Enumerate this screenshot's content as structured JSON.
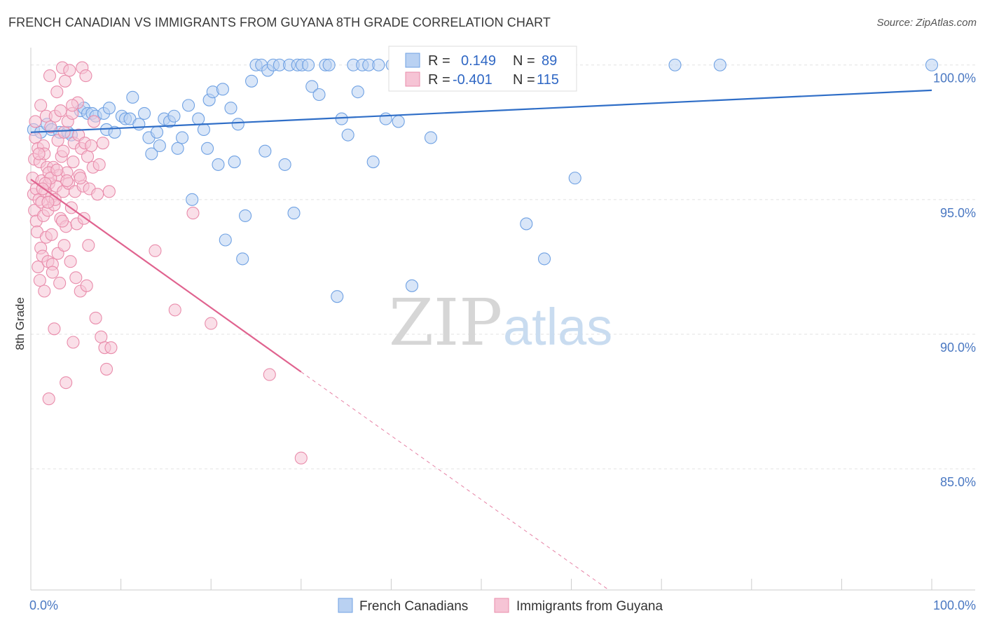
{
  "title": "FRENCH CANADIAN VS IMMIGRANTS FROM GUYANA 8TH GRADE CORRELATION CHART",
  "source": "Source: ZipAtlas.com",
  "watermark": {
    "zip": "ZIP",
    "atlas": "atlas"
  },
  "chart_data": {
    "type": "scatter",
    "xlabel": "",
    "ylabel": "8th Grade",
    "xlim": [
      0,
      100
    ],
    "ylim": [
      80.5,
      100.8
    ],
    "x_tick_labels": [
      "0.0%",
      "100.0%"
    ],
    "y_ticks": [
      {
        "value": 100,
        "label": "100.0%"
      },
      {
        "value": 95,
        "label": "95.0%"
      },
      {
        "value": 90,
        "label": "90.0%"
      },
      {
        "value": 85,
        "label": "85.0%"
      }
    ],
    "grid": true,
    "legend": {
      "placement": "top-center",
      "rows": [
        {
          "r_label": "R =",
          "r_value": "0.149",
          "n_label": "N =",
          "n_value": "89"
        },
        {
          "r_label": "R =",
          "r_value": "-0.401",
          "n_label": "N =",
          "n_value": "115"
        }
      ]
    },
    "series": [
      {
        "name": "French Canadians",
        "color": "#6fa1e3",
        "fill": "#b9d1f2",
        "trend": {
          "x0": 0,
          "y0": 97.5,
          "x1": 100,
          "y1": 99.06,
          "dashed_to": null
        },
        "points": [
          [
            0.3,
            97.6
          ],
          [
            1.1,
            97.5
          ],
          [
            1.8,
            97.8
          ],
          [
            2.3,
            97.6
          ],
          [
            3.2,
            97.5
          ],
          [
            4.1,
            97.5
          ],
          [
            4.5,
            97.4
          ],
          [
            5.5,
            98.3
          ],
          [
            5.9,
            98.4
          ],
          [
            6.3,
            98.2
          ],
          [
            6.8,
            98.2
          ],
          [
            7.2,
            98.1
          ],
          [
            8.1,
            98.2
          ],
          [
            8.4,
            97.6
          ],
          [
            8.7,
            98.4
          ],
          [
            9.3,
            97.5
          ],
          [
            10.1,
            98.1
          ],
          [
            10.5,
            98.0
          ],
          [
            11.0,
            98.0
          ],
          [
            11.3,
            98.8
          ],
          [
            12.0,
            97.8
          ],
          [
            12.6,
            98.2
          ],
          [
            13.1,
            97.3
          ],
          [
            13.4,
            96.7
          ],
          [
            14.0,
            97.5
          ],
          [
            14.3,
            97.0
          ],
          [
            14.8,
            98.0
          ],
          [
            15.4,
            97.9
          ],
          [
            15.9,
            98.1
          ],
          [
            16.3,
            96.9
          ],
          [
            16.8,
            97.3
          ],
          [
            17.5,
            98.5
          ],
          [
            17.9,
            95.0
          ],
          [
            18.6,
            98.0
          ],
          [
            19.2,
            97.6
          ],
          [
            19.6,
            96.9
          ],
          [
            19.8,
            98.7
          ],
          [
            20.2,
            99.0
          ],
          [
            20.8,
            96.3
          ],
          [
            21.3,
            99.1
          ],
          [
            21.6,
            93.5
          ],
          [
            22.2,
            98.4
          ],
          [
            22.6,
            96.4
          ],
          [
            23.0,
            97.8
          ],
          [
            23.5,
            92.8
          ],
          [
            23.8,
            94.4
          ],
          [
            24.5,
            99.4
          ],
          [
            25.0,
            100.0
          ],
          [
            25.6,
            100.0
          ],
          [
            26.0,
            96.8
          ],
          [
            26.3,
            99.8
          ],
          [
            26.9,
            100.0
          ],
          [
            27.6,
            100.0
          ],
          [
            28.2,
            96.3
          ],
          [
            28.7,
            100.0
          ],
          [
            29.2,
            94.5
          ],
          [
            29.6,
            100.0
          ],
          [
            30.1,
            100.0
          ],
          [
            30.8,
            100.0
          ],
          [
            31.2,
            99.2
          ],
          [
            32.0,
            98.9
          ],
          [
            32.7,
            100.0
          ],
          [
            33.1,
            100.0
          ],
          [
            34.0,
            91.4
          ],
          [
            34.5,
            98.0
          ],
          [
            35.2,
            97.4
          ],
          [
            35.8,
            100.0
          ],
          [
            36.3,
            99.0
          ],
          [
            36.8,
            100.0
          ],
          [
            37.5,
            100.0
          ],
          [
            38.0,
            96.4
          ],
          [
            38.6,
            100.0
          ],
          [
            39.4,
            98.0
          ],
          [
            40.1,
            100.0
          ],
          [
            40.8,
            97.9
          ],
          [
            41.5,
            100.0
          ],
          [
            42.3,
            91.8
          ],
          [
            43.0,
            100.0
          ],
          [
            43.6,
            100.0
          ],
          [
            44.4,
            97.3
          ],
          [
            45.1,
            100.0
          ],
          [
            45.8,
            100.0
          ],
          [
            48.0,
            100.0
          ],
          [
            55.0,
            94.1
          ],
          [
            57.0,
            92.8
          ],
          [
            60.4,
            95.8
          ],
          [
            71.5,
            100.0
          ],
          [
            76.5,
            100.0
          ],
          [
            100.0,
            100.0
          ]
        ]
      },
      {
        "name": "Immigrants from Guyana",
        "color": "#e98cab",
        "fill": "#f6c4d5",
        "trend": {
          "x0": 0,
          "y0": 95.75,
          "x1": 30.0,
          "y1": 88.6,
          "dashed_to": {
            "x": 100,
            "y": 72.0
          }
        },
        "points": [
          [
            0.2,
            95.8
          ],
          [
            0.3,
            95.2
          ],
          [
            0.4,
            94.6
          ],
          [
            0.4,
            96.5
          ],
          [
            0.5,
            97.3
          ],
          [
            0.6,
            95.4
          ],
          [
            0.6,
            94.2
          ],
          [
            0.7,
            93.8
          ],
          [
            0.8,
            96.9
          ],
          [
            0.8,
            92.5
          ],
          [
            0.9,
            95.0
          ],
          [
            1.0,
            92.0
          ],
          [
            1.0,
            96.4
          ],
          [
            1.1,
            93.2
          ],
          [
            1.2,
            95.7
          ],
          [
            1.2,
            94.9
          ],
          [
            1.3,
            92.9
          ],
          [
            1.4,
            97.0
          ],
          [
            1.4,
            94.4
          ],
          [
            1.5,
            96.7
          ],
          [
            1.5,
            91.6
          ],
          [
            1.6,
            95.3
          ],
          [
            1.7,
            93.6
          ],
          [
            1.7,
            98.1
          ],
          [
            1.8,
            96.2
          ],
          [
            1.9,
            92.7
          ],
          [
            1.9,
            94.6
          ],
          [
            2.0,
            95.6
          ],
          [
            2.0,
            87.6
          ],
          [
            2.1,
            99.6
          ],
          [
            2.2,
            97.7
          ],
          [
            2.3,
            95.1
          ],
          [
            2.3,
            93.7
          ],
          [
            2.4,
            92.6
          ],
          [
            2.5,
            96.2
          ],
          [
            2.6,
            90.2
          ],
          [
            2.6,
            94.8
          ],
          [
            2.7,
            98.1
          ],
          [
            2.8,
            95.5
          ],
          [
            2.9,
            99.0
          ],
          [
            3.0,
            97.2
          ],
          [
            3.0,
            93.0
          ],
          [
            3.1,
            95.9
          ],
          [
            3.2,
            91.9
          ],
          [
            3.3,
            98.3
          ],
          [
            3.3,
            94.3
          ],
          [
            3.4,
            96.6
          ],
          [
            3.5,
            99.9
          ],
          [
            3.6,
            95.3
          ],
          [
            3.7,
            97.5
          ],
          [
            3.7,
            93.3
          ],
          [
            3.8,
            99.4
          ],
          [
            3.9,
            94.0
          ],
          [
            3.9,
            88.2
          ],
          [
            4.0,
            96.0
          ],
          [
            4.1,
            97.9
          ],
          [
            4.2,
            95.6
          ],
          [
            4.3,
            99.8
          ],
          [
            4.4,
            92.7
          ],
          [
            4.5,
            94.7
          ],
          [
            4.6,
            98.2
          ],
          [
            4.7,
            89.7
          ],
          [
            4.7,
            96.4
          ],
          [
            4.8,
            97.1
          ],
          [
            4.9,
            95.3
          ],
          [
            5.0,
            92.1
          ],
          [
            5.1,
            94.1
          ],
          [
            5.2,
            98.6
          ],
          [
            5.3,
            97.4
          ],
          [
            5.4,
            95.9
          ],
          [
            5.5,
            91.6
          ],
          [
            5.6,
            96.9
          ],
          [
            5.7,
            99.9
          ],
          [
            5.8,
            95.5
          ],
          [
            5.9,
            94.3
          ],
          [
            6.0,
            97.1
          ],
          [
            6.1,
            99.6
          ],
          [
            6.2,
            91.8
          ],
          [
            6.3,
            96.6
          ],
          [
            6.4,
            93.3
          ],
          [
            6.5,
            95.4
          ],
          [
            6.7,
            97.0
          ],
          [
            6.9,
            96.2
          ],
          [
            7.0,
            97.9
          ],
          [
            7.2,
            90.6
          ],
          [
            7.4,
            95.2
          ],
          [
            7.6,
            96.3
          ],
          [
            7.8,
            89.9
          ],
          [
            8.0,
            97.1
          ],
          [
            8.2,
            89.5
          ],
          [
            8.4,
            88.7
          ],
          [
            8.7,
            95.3
          ],
          [
            2.0,
            96.0
          ],
          [
            2.2,
            95.8
          ],
          [
            2.7,
            95.0
          ],
          [
            3.5,
            94.2
          ],
          [
            4.0,
            95.7
          ],
          [
            1.6,
            95.6
          ],
          [
            0.9,
            96.7
          ],
          [
            1.3,
            95.4
          ],
          [
            1.9,
            94.9
          ],
          [
            2.4,
            92.3
          ],
          [
            2.9,
            96.1
          ],
          [
            3.6,
            96.8
          ],
          [
            4.6,
            98.5
          ],
          [
            5.5,
            95.8
          ],
          [
            13.8,
            93.1
          ],
          [
            16.0,
            90.9
          ],
          [
            18.0,
            94.5
          ],
          [
            20.0,
            90.4
          ],
          [
            26.5,
            88.5
          ],
          [
            30.0,
            85.4
          ],
          [
            0.5,
            97.9
          ],
          [
            1.1,
            98.5
          ],
          [
            8.9,
            89.5
          ]
        ]
      }
    ]
  }
}
